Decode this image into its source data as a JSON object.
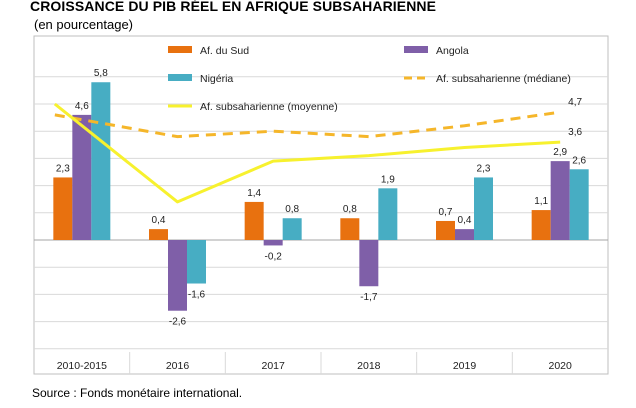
{
  "title": "CROISSANCE DU PIB RÉEL EN AFRIQUE SUBSAHARIENNE",
  "subtitle": "(en pourcentage)",
  "source": "Source : Fonds monétaire international.",
  "chart_data": {
    "type": "bar",
    "categories": [
      "2010-2015",
      "2016",
      "2017",
      "2018",
      "2019",
      "2020"
    ],
    "series": [
      {
        "name": "Af. du Sud",
        "kind": "bar",
        "color": "#e8710f",
        "values": [
          2.3,
          0.4,
          1.4,
          0.8,
          0.7,
          1.1
        ],
        "labels": [
          "2,3",
          "0,4",
          "1,4",
          "0,8",
          "0,7",
          "1,1"
        ]
      },
      {
        "name": "Angola",
        "kind": "bar",
        "color": "#7f5fa8",
        "values": [
          4.6,
          -2.6,
          -0.2,
          -1.7,
          0.4,
          2.9
        ],
        "labels": [
          "4,6",
          "-2,6",
          "-0,2",
          "-1,7",
          "0,4",
          "2,9"
        ]
      },
      {
        "name": "Nigéria",
        "kind": "bar",
        "color": "#47adc3",
        "values": [
          5.8,
          -1.6,
          0.8,
          1.9,
          2.3,
          2.6
        ],
        "labels": [
          "5,8",
          "-1,6",
          "0,8",
          "1,9",
          "2,3",
          "2,6"
        ]
      },
      {
        "name": "Af. subsaharienne (médiane)",
        "kind": "dashed-line",
        "color": "#f5b62a",
        "values": [
          4.6,
          3.8,
          4.0,
          3.8,
          4.2,
          4.7
        ],
        "labels": [
          "",
          "",
          "",
          "",
          "",
          "4,7"
        ]
      },
      {
        "name": "Af. subsaharienne (moyenne)",
        "kind": "line",
        "color": "#f7f12e",
        "values": [
          5.0,
          1.4,
          2.9,
          3.1,
          3.4,
          3.6
        ],
        "labels": [
          "",
          "",
          "",
          "",
          "",
          "3,6"
        ]
      }
    ],
    "ylim": [
      -4,
      7
    ],
    "grid": true,
    "legend": "top"
  }
}
